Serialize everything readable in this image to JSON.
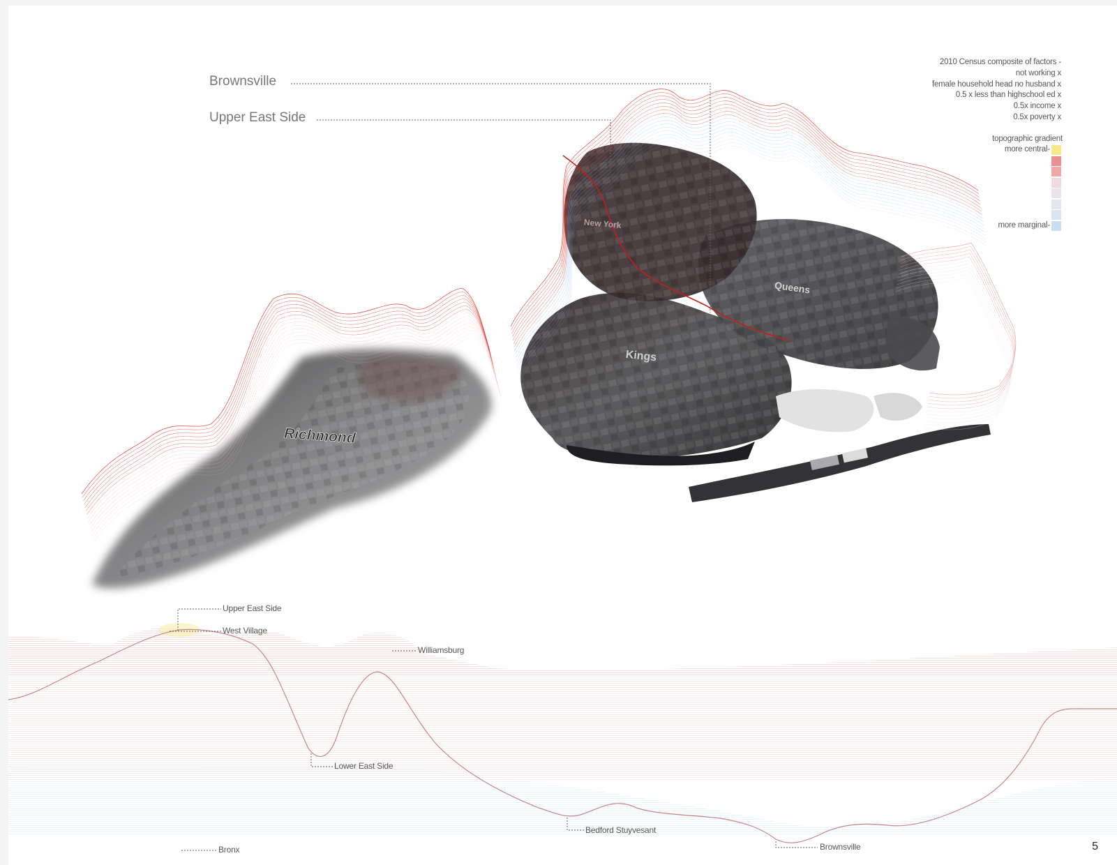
{
  "callouts": {
    "brownsville": "Brownsville",
    "upper_east_side": "Upper East Side"
  },
  "legend": {
    "lines": [
      "2010 Census composite of factors -",
      "not working x",
      "female household head no husband x",
      "0.5 x less than highschool ed x",
      "0.5x income x",
      "0.5x poverty x"
    ],
    "gradient_title": "topographic gradient",
    "central_label": "more  central-",
    "marginal_label": "more marginal-",
    "swatches": [
      "#f6e98a",
      "#eb8f8f",
      "#efa7a7",
      "#f1dadd",
      "#e8e4ec",
      "#e3e7f0",
      "#d9e6f2",
      "#c9def1"
    ]
  },
  "map_labels": {
    "richmond": "Richmond",
    "kings": "Kings",
    "queens": "Queens",
    "new_york": "New York"
  },
  "profile_labels": {
    "upper_east_side": "Upper East Side",
    "west_village": "West Village",
    "williamsburg": "Williamsburg",
    "lower_east_side": "Lower East Side",
    "bedford_stuyvesant": "Bedford Stuyvesant",
    "brownsville": "Brownsville",
    "bronx": "Bronx"
  },
  "colors": {
    "high": "#e0443a",
    "low": "#8fb6e6",
    "land_dark": "#3e3e42",
    "land_mid": "#8a8a8c"
  },
  "page_number": "5"
}
